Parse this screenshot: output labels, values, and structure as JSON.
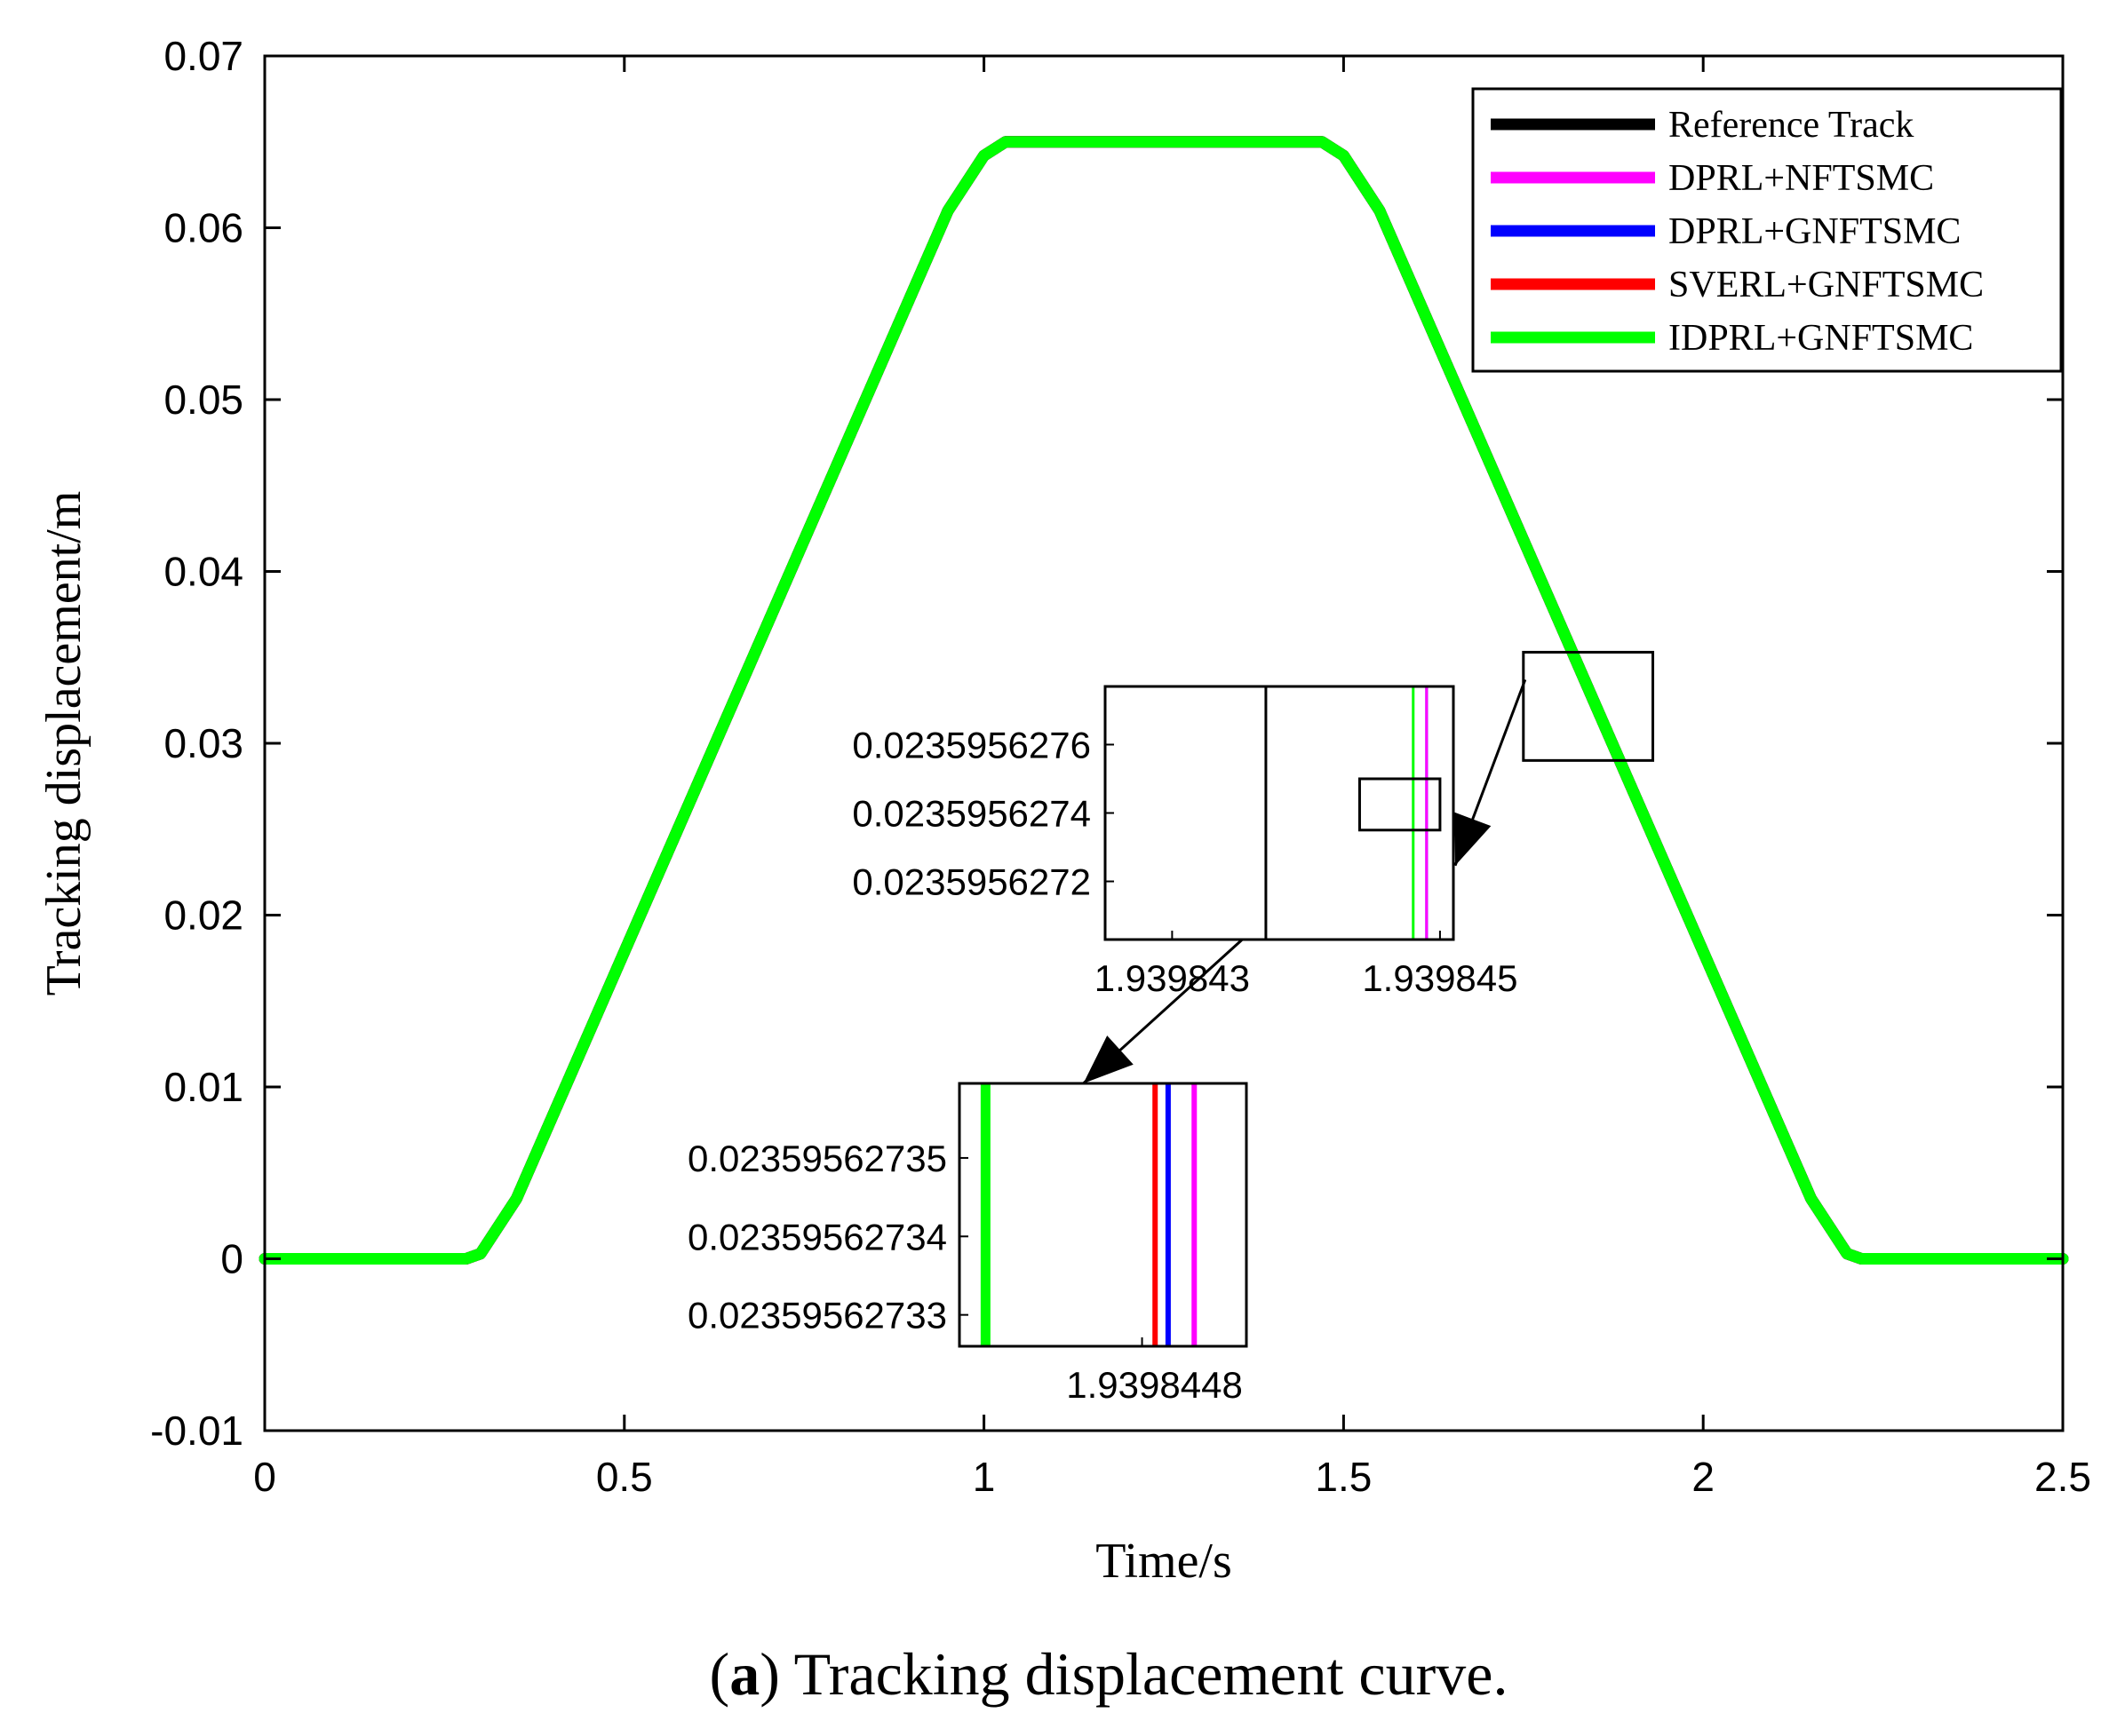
{
  "chart_data": {
    "type": "line",
    "title": "",
    "xlabel": "Time/s",
    "ylabel": "Tracking displacement/m",
    "xlim": [
      0,
      2.5
    ],
    "ylim": [
      -0.01,
      0.07
    ],
    "x_ticks": [
      "0",
      "0.5",
      "1",
      "1.5",
      "2",
      "2.5"
    ],
    "y_ticks": [
      "-0.01",
      "0",
      "0.01",
      "0.02",
      "0.03",
      "0.04",
      "0.05",
      "0.06",
      "0.07"
    ],
    "legend_position": "top-right",
    "series": [
      {
        "name": "Reference Track",
        "color": "#000000",
        "x": [
          0,
          0.28,
          0.3,
          0.35,
          0.95,
          1.0,
          1.03,
          1.47,
          1.5,
          1.55,
          2.15,
          2.2,
          2.22,
          2.5
        ],
        "y": [
          0,
          0,
          0.0003,
          0.0035,
          0.061,
          0.0642,
          0.065,
          0.065,
          0.0642,
          0.061,
          0.0035,
          0.0003,
          0,
          0
        ]
      },
      {
        "name": "DPRL+NFTSMC",
        "color": "#ff00ff",
        "x": [
          0,
          0.28,
          0.3,
          0.35,
          0.95,
          1.0,
          1.03,
          1.47,
          1.5,
          1.55,
          2.15,
          2.2,
          2.22,
          2.5
        ],
        "y": [
          0,
          0,
          0.0003,
          0.0035,
          0.061,
          0.0642,
          0.065,
          0.065,
          0.0642,
          0.061,
          0.0035,
          0.0003,
          0,
          0
        ]
      },
      {
        "name": "DPRL+GNFTSMC",
        "color": "#0000ff",
        "x": [
          0,
          0.28,
          0.3,
          0.35,
          0.95,
          1.0,
          1.03,
          1.47,
          1.5,
          1.55,
          2.15,
          2.2,
          2.22,
          2.5
        ],
        "y": [
          0,
          0,
          0.0003,
          0.0035,
          0.061,
          0.0642,
          0.065,
          0.065,
          0.0642,
          0.061,
          0.0035,
          0.0003,
          0,
          0
        ]
      },
      {
        "name": "SVERL+GNFTSMC",
        "color": "#ff0000",
        "x": [
          0,
          0.28,
          0.3,
          0.35,
          0.95,
          1.0,
          1.03,
          1.47,
          1.5,
          1.55,
          2.15,
          2.2,
          2.22,
          2.5
        ],
        "y": [
          0,
          0,
          0.0003,
          0.0035,
          0.061,
          0.0642,
          0.065,
          0.065,
          0.0642,
          0.061,
          0.0035,
          0.0003,
          0,
          0
        ]
      },
      {
        "name": "IDPRL+GNFTSMC",
        "color": "#00ff00",
        "x": [
          0,
          0.28,
          0.3,
          0.35,
          0.95,
          1.0,
          1.03,
          1.47,
          1.5,
          1.55,
          2.15,
          2.2,
          2.22,
          2.5
        ],
        "y": [
          0,
          0,
          0.0003,
          0.0035,
          0.061,
          0.0642,
          0.065,
          0.065,
          0.0642,
          0.061,
          0.0035,
          0.0003,
          0,
          0
        ]
      }
    ],
    "zoom_region": {
      "x_range": [
        1.75,
        1.93
      ],
      "y_range": [
        0.029,
        0.0353
      ]
    },
    "inset1": {
      "xlim": [
        1.9398425,
        1.9398451
      ],
      "ylim": [
        0.02359562703,
        0.02359562777
      ],
      "x_ticks": [
        "1.939843",
        "1.939845"
      ],
      "x_tick_values": [
        1.939843,
        1.939845
      ],
      "y_ticks": [
        "0.0235956276",
        "0.0235956274",
        "0.0235956272"
      ],
      "y_tick_values": [
        0.0235956276,
        0.0235956274,
        0.0235956272
      ],
      "lines": [
        {
          "series": "Reference Track",
          "x": 1.9398437,
          "color": "#000000"
        },
        {
          "series": "IDPRL+GNFTSMC",
          "x": 1.9398448,
          "color": "#00ff00"
        },
        {
          "series": "DPRL+GNFTSMC",
          "x": 1.9398449,
          "color": "#0000ff"
        },
        {
          "series": "DPRL+NFTSMC",
          "x": 1.9398449,
          "color": "#ff00ff"
        }
      ],
      "zoom_box": {
        "x_range": [
          1.9398444,
          1.939845
        ],
        "y_range": [
          0.02359562735,
          0.0235956275
        ]
      }
    },
    "inset2": {
      "xlim": [
        1.93984452,
        1.93984496
      ],
      "ylim": [
        0.023595627326,
        0.0235956273595
      ],
      "x_ticks": [
        "1.9398448"
      ],
      "x_tick_values": [
        1.9398448
      ],
      "y_ticks": [
        "0.02359562735",
        "0.02359562734",
        "0.02359562733"
      ],
      "y_tick_values": [
        0.02359562735,
        0.02359562734,
        0.02359562733
      ],
      "lines": [
        {
          "series": "IDPRL+GNFTSMC",
          "x": 1.93984456,
          "color": "#00ff00"
        },
        {
          "series": "SVERL+GNFTSMC",
          "x": 1.93984482,
          "color": "#ff0000"
        },
        {
          "series": "DPRL+GNFTSMC",
          "x": 1.93984484,
          "color": "#0000ff"
        },
        {
          "series": "DPRL+NFTSMC",
          "x": 1.93984488,
          "color": "#ff00ff"
        }
      ]
    }
  },
  "caption": {
    "letter": "a",
    "text": "Tracking displacement curve."
  }
}
